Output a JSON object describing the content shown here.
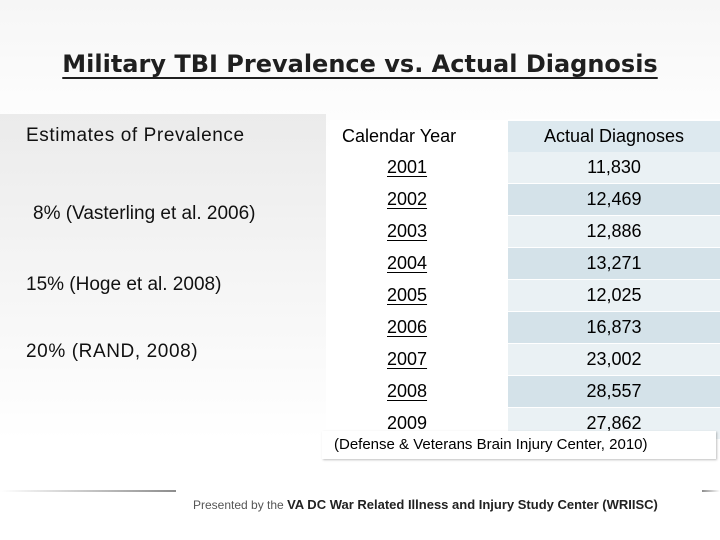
{
  "title": "Military TBI Prevalence vs. Actual Diagnosis",
  "estimates": {
    "heading": "Estimates of Prevalence",
    "items": [
      "8% (Vasterling et al. 2006)",
      "15% (Hoge et al. 2008)",
      "20% (RAND, 2008)"
    ]
  },
  "table": {
    "headers": [
      "Calendar Year",
      "Actual Diagnoses"
    ],
    "rows": [
      {
        "year": "2001",
        "count": "11,830"
      },
      {
        "year": "2002",
        "count": "12,469"
      },
      {
        "year": "2003",
        "count": "12,886"
      },
      {
        "year": "2004",
        "count": "13,271"
      },
      {
        "year": "2005",
        "count": "12,025"
      },
      {
        "year": "2006",
        "count": "16,873"
      },
      {
        "year": "2007",
        "count": "23,002"
      },
      {
        "year": "2008",
        "count": "28,557"
      },
      {
        "year": "2009",
        "count": "27,862"
      }
    ]
  },
  "citation": "(Defense & Veterans Brain Injury Center, 2010)",
  "footer": {
    "prefix": "Presented by the",
    "org": "VA DC War Related Illness and Injury Study Center (WRIISC)"
  }
}
